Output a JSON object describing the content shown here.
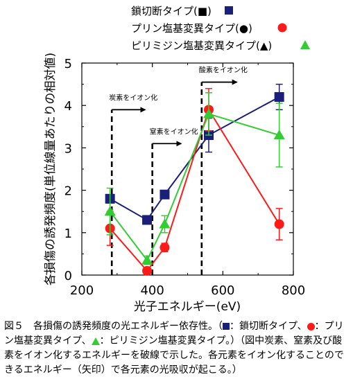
{
  "chart_data": {
    "type": "line",
    "x_label": "光子エネルギー(eV)",
    "y_label": "各損傷の誘発頻度(単位線量あたりの相対値)",
    "xlim": [
      200,
      800
    ],
    "ylim": [
      0,
      5
    ],
    "x_ticks": [
      200,
      400,
      600,
      800
    ],
    "y_ticks": [
      0,
      1,
      2,
      3,
      4,
      5
    ],
    "series": [
      {
        "name": "鎖切断タイプ(■)",
        "color": "#1a1f7a",
        "marker": "square",
        "points": [
          {
            "x": 280,
            "y": 1.8,
            "err": 0.1
          },
          {
            "x": 385,
            "y": 1.3,
            "err": 0.05
          },
          {
            "x": 435,
            "y": 1.9,
            "err": 0.05
          },
          {
            "x": 560,
            "y": 3.3,
            "err": 0.4
          },
          {
            "x": 760,
            "y": 4.2,
            "err": 0.3
          }
        ]
      },
      {
        "name": "プリン塩基変異タイプ(●)",
        "color": "#ff1a1a",
        "marker": "circle",
        "points": [
          {
            "x": 280,
            "y": 1.1,
            "err": 0.4
          },
          {
            "x": 385,
            "y": 0.1,
            "err": 0.05
          },
          {
            "x": 435,
            "y": 0.65,
            "err": 0.1
          },
          {
            "x": 560,
            "y": 3.9,
            "err": 0.5
          },
          {
            "x": 760,
            "y": 1.2,
            "err": 0.37
          }
        ]
      },
      {
        "name": "ピリミジン塩基変異タイプ(▲)",
        "color": "#33cc33",
        "marker": "triangle",
        "points": [
          {
            "x": 280,
            "y": 1.5,
            "err": 0.55
          },
          {
            "x": 385,
            "y": 0.35,
            "err": 0.1
          },
          {
            "x": 435,
            "y": 1.2,
            "err": 0.2
          },
          {
            "x": 560,
            "y": 3.8,
            "err": 0.5
          },
          {
            "x": 760,
            "y": 3.3,
            "err": 0.75
          }
        ]
      }
    ],
    "annotations": [
      {
        "text": "炭素をイオン化",
        "edge_x": 285,
        "arrow_to_x": 380,
        "line_top_y": 3.9,
        "line_bottom_y": 0
      },
      {
        "text": "窒素をイオン化",
        "edge_x": 400,
        "arrow_to_x": 482,
        "line_top_y": 3.1,
        "line_bottom_y": 0
      },
      {
        "text": "酸素をイオン化",
        "edge_x": 540,
        "arrow_to_x": 640,
        "line_top_y": 4.55,
        "line_bottom_y": 0
      }
    ]
  },
  "caption": {
    "fig": "図５",
    "text_1": "各損傷の誘発頻度の光エネルギー依存性。（",
    "text_2": "：鎖切断タイプ、",
    "text_3": "：プリン塩基変異タイプ、",
    "text_4": "：ピリミジン塩基変異タイプ。）（図中炭素、窒素及び酸素をイオン化するエネルギーを破線で示した。各元素をイオン化することのできるエネルギー（矢印）で各元素の光吸収が起こる。）"
  }
}
